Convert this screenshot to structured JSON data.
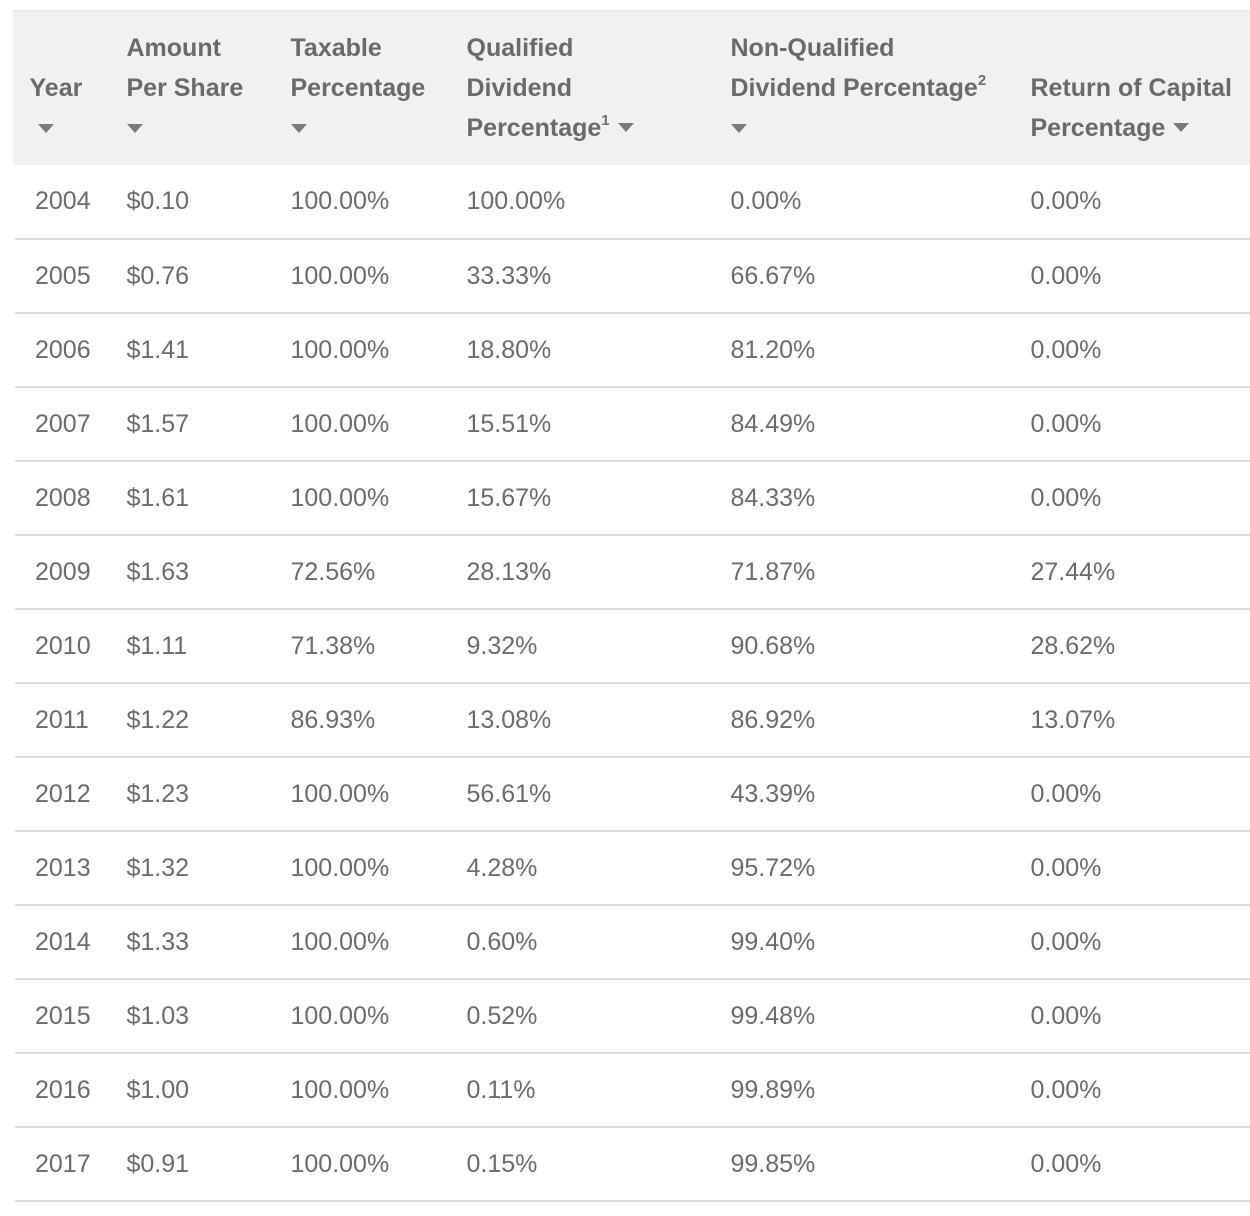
{
  "table": {
    "headers": {
      "year": "Year",
      "amount_1": "Amount",
      "amount_2": "Per Share",
      "taxable_1": "Taxable",
      "taxable_2": "Percentage",
      "qualified_1": "Qualified",
      "qualified_2": "Dividend",
      "qualified_3": "Percentage",
      "qualified_sup": "1",
      "nonqualified_1": "Non-Qualified",
      "nonqualified_2": "Dividend Percentage",
      "nonqualified_sup": "2",
      "roc_1": "Return of Capital",
      "roc_2": "Percentage"
    },
    "sort_icon": "chevron-down-icon",
    "rows": [
      {
        "year": "2004",
        "amount": "$0.10",
        "taxable": "100.00%",
        "qualified": "100.00%",
        "nonqualified": "0.00%",
        "roc": "0.00%"
      },
      {
        "year": "2005",
        "amount": "$0.76",
        "taxable": "100.00%",
        "qualified": "33.33%",
        "nonqualified": "66.67%",
        "roc": "0.00%"
      },
      {
        "year": "2006",
        "amount": "$1.41",
        "taxable": "100.00%",
        "qualified": "18.80%",
        "nonqualified": "81.20%",
        "roc": "0.00%"
      },
      {
        "year": "2007",
        "amount": "$1.57",
        "taxable": "100.00%",
        "qualified": "15.51%",
        "nonqualified": "84.49%",
        "roc": "0.00%"
      },
      {
        "year": "2008",
        "amount": "$1.61",
        "taxable": "100.00%",
        "qualified": "15.67%",
        "nonqualified": "84.33%",
        "roc": "0.00%"
      },
      {
        "year": "2009",
        "amount": "$1.63",
        "taxable": "72.56%",
        "qualified": "28.13%",
        "nonqualified": "71.87%",
        "roc": "27.44%"
      },
      {
        "year": "2010",
        "amount": "$1.11",
        "taxable": "71.38%",
        "qualified": "9.32%",
        "nonqualified": "90.68%",
        "roc": "28.62%"
      },
      {
        "year": "2011",
        "amount": "$1.22",
        "taxable": "86.93%",
        "qualified": "13.08%",
        "nonqualified": "86.92%",
        "roc": "13.07%"
      },
      {
        "year": "2012",
        "amount": "$1.23",
        "taxable": "100.00%",
        "qualified": "56.61%",
        "nonqualified": "43.39%",
        "roc": "0.00%"
      },
      {
        "year": "2013",
        "amount": "$1.32",
        "taxable": "100.00%",
        "qualified": "4.28%",
        "nonqualified": "95.72%",
        "roc": "0.00%"
      },
      {
        "year": "2014",
        "amount": "$1.33",
        "taxable": "100.00%",
        "qualified": "0.60%",
        "nonqualified": "99.40%",
        "roc": "0.00%"
      },
      {
        "year": "2015",
        "amount": "$1.03",
        "taxable": "100.00%",
        "qualified": "0.52%",
        "nonqualified": "99.48%",
        "roc": "0.00%"
      },
      {
        "year": "2016",
        "amount": "$1.00",
        "taxable": "100.00%",
        "qualified": "0.11%",
        "nonqualified": "99.89%",
        "roc": "0.00%"
      },
      {
        "year": "2017",
        "amount": "$0.91",
        "taxable": "100.00%",
        "qualified": "0.15%",
        "nonqualified": "99.85%",
        "roc": "0.00%"
      }
    ]
  }
}
